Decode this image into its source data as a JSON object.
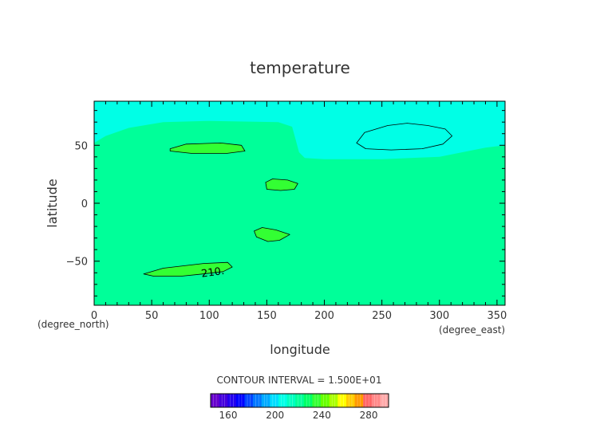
{
  "chart_data": {
    "type": "heatmap",
    "title": "temperature",
    "xlabel": "longitude",
    "ylabel": "latitude",
    "x_unit_label": "(degree_east)",
    "y_unit_label": "(degree_north)",
    "xlim": [
      0,
      357
    ],
    "ylim": [
      -88,
      88
    ],
    "xticks": [
      0,
      50,
      100,
      150,
      200,
      250,
      300,
      350
    ],
    "yticks": [
      -50,
      0,
      50
    ],
    "contour_interval_label": "CONTOUR INTERVAL = 1.500E+01",
    "contour_labels": [
      {
        "text": "210.",
        "lon": 103,
        "lat": -59
      }
    ],
    "regions": [
      {
        "name": "cold-band-north",
        "color": "#00ffe6",
        "boundary": [
          [
            0,
            88
          ],
          [
            357,
            88
          ],
          [
            357,
            50
          ],
          [
            340,
            48
          ],
          [
            300,
            40
          ],
          [
            250,
            38
          ],
          [
            200,
            38
          ],
          [
            183,
            39
          ],
          [
            178,
            44
          ],
          [
            175,
            55
          ],
          [
            172,
            66
          ],
          [
            160,
            70
          ],
          [
            100,
            71
          ],
          [
            60,
            70
          ],
          [
            30,
            65
          ],
          [
            10,
            58
          ],
          [
            0,
            52
          ]
        ]
      },
      {
        "name": "closed-contour-east",
        "color": "#00ffe6",
        "boundary": [
          [
            228,
            52
          ],
          [
            235,
            61
          ],
          [
            255,
            67
          ],
          [
            272,
            69
          ],
          [
            290,
            67
          ],
          [
            305,
            64
          ],
          [
            311,
            58
          ],
          [
            303,
            51
          ],
          [
            285,
            47
          ],
          [
            258,
            46
          ],
          [
            236,
            47
          ]
        ]
      },
      {
        "name": "warm-patch-1",
        "color": "#33ff33",
        "boundary": [
          [
            66,
            47
          ],
          [
            80,
            51
          ],
          [
            110,
            52
          ],
          [
            128,
            50
          ],
          [
            131,
            45
          ],
          [
            115,
            43
          ],
          [
            85,
            43
          ],
          [
            66,
            45
          ]
        ]
      },
      {
        "name": "warm-patch-2",
        "color": "#33ff33",
        "boundary": [
          [
            149,
            18
          ],
          [
            155,
            21
          ],
          [
            168,
            20
          ],
          [
            177,
            17
          ],
          [
            174,
            12
          ],
          [
            162,
            11
          ],
          [
            150,
            12
          ]
        ]
      },
      {
        "name": "warm-patch-3",
        "color": "#33ff33",
        "boundary": [
          [
            139,
            -24
          ],
          [
            146,
            -21
          ],
          [
            158,
            -23
          ],
          [
            170,
            -27
          ],
          [
            161,
            -32
          ],
          [
            151,
            -33
          ],
          [
            141,
            -29
          ]
        ]
      },
      {
        "name": "warm-patch-4",
        "color": "#33ff33",
        "boundary": [
          [
            43,
            -61
          ],
          [
            60,
            -56
          ],
          [
            95,
            -52
          ],
          [
            116,
            -51
          ],
          [
            120,
            -55
          ],
          [
            112,
            -59
          ],
          [
            95,
            -61
          ],
          [
            75,
            -63
          ],
          [
            52,
            -63
          ]
        ]
      }
    ],
    "background_region_color": "#00ff99",
    "colorbar": {
      "min": 145,
      "max": 297,
      "tick_values": [
        160,
        200,
        240,
        280
      ],
      "colors": [
        "#6600cc",
        "#4400dd",
        "#2200ee",
        "#0000ff",
        "#0044ff",
        "#0077ff",
        "#00aaff",
        "#00ddff",
        "#00ffe6",
        "#00ffc0",
        "#00ff99",
        "#00ff66",
        "#33ff33",
        "#66ff00",
        "#aaff00",
        "#ffff00",
        "#ffcc00",
        "#ff9900",
        "#ff6666",
        "#ff8888",
        "#ffaaaa"
      ]
    }
  }
}
